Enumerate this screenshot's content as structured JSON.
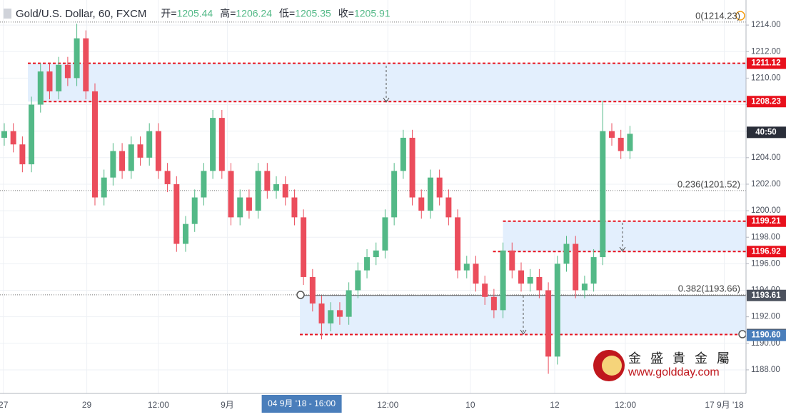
{
  "chart_data": {
    "type": "candlestick",
    "title": "Gold/U.S. Dollar, 60, FXCM",
    "ohlc_header": [
      {
        "label": "开=",
        "value": 1205.44
      },
      {
        "label": "高=",
        "value": 1206.24
      },
      {
        "label": "低=",
        "value": 1205.35
      },
      {
        "label": "收=",
        "value": 1205.91
      }
    ],
    "up_color": "#53b987",
    "down_color": "#eb4d5c",
    "open": [
      1205.5,
      1206,
      1205,
      1203.5,
      1208,
      1210.5,
      1209,
      1211,
      1210,
      1213,
      1209,
      1201,
      1202.5,
      1204.5,
      1203,
      1205,
      1204,
      1206,
      1203,
      1202,
      1197.5,
      1199,
      1201,
      1203,
      1207,
      1203,
      1199.5,
      1201,
      1200,
      1203,
      1201.5,
      1202,
      1201,
      1199.5,
      1195,
      1193,
      1191.5,
      1192.5,
      1192,
      1194,
      1195.5,
      1196.5,
      1197,
      1199.5,
      1203,
      1205.5,
      1201,
      1200,
      1202.5,
      1201,
      1199.5,
      1195.5,
      1196,
      1194.5,
      1193.5,
      1192.5,
      1197,
      1195.5,
      1194.5,
      1195,
      1194,
      1189,
      1196,
      1197.5,
      1194,
      1194.5,
      1196.5,
      1206,
      1205.5,
      1204.5
    ],
    "high": [
      1206.6,
      1206.6,
      1205.6,
      1208.6,
      1211.1,
      1211.1,
      1211.6,
      1211.6,
      1214.1,
      1213.6,
      1209.6,
      1203.1,
      1205.1,
      1205.1,
      1205.6,
      1205.6,
      1206.6,
      1206.6,
      1203.6,
      1202.6,
      1199.6,
      1201.6,
      1203.6,
      1207.6,
      1207.6,
      1203.6,
      1201.6,
      1201.6,
      1203.6,
      1203.6,
      1202.6,
      1202.6,
      1201.6,
      1200.1,
      1195.6,
      1193.6,
      1193.1,
      1193.1,
      1194.6,
      1196.1,
      1197.1,
      1197.6,
      1200.1,
      1203.6,
      1206.1,
      1206.1,
      1201.6,
      1203.1,
      1203.1,
      1201.6,
      1200.1,
      1196.6,
      1196.6,
      1195.1,
      1194.1,
      1197.6,
      1197.6,
      1196.1,
      1195.6,
      1195.6,
      1194.6,
      1196.6,
      1198.1,
      1198.1,
      1195.1,
      1197.1,
      1208.3,
      1206.6,
      1206.1,
      1206.4
    ],
    "low": [
      1204.9,
      1204.4,
      1202.9,
      1202.9,
      1207.4,
      1208.4,
      1208.4,
      1209.4,
      1209.4,
      1208.4,
      1200.4,
      1200.4,
      1201.9,
      1202.4,
      1202.4,
      1203.4,
      1203.4,
      1202.4,
      1201.4,
      1196.9,
      1196.9,
      1198.4,
      1200.4,
      1202.4,
      1202.4,
      1198.9,
      1198.9,
      1199.4,
      1199.4,
      1200.9,
      1200.9,
      1200.4,
      1198.9,
      1194.4,
      1192.4,
      1190.3,
      1190.9,
      1191.4,
      1191.4,
      1193.4,
      1194.9,
      1195.9,
      1196.4,
      1198.9,
      1202.4,
      1200.4,
      1199.4,
      1199.4,
      1200.4,
      1198.9,
      1194.9,
      1194.9,
      1193.9,
      1192.9,
      1191.9,
      1191.9,
      1194.9,
      1193.9,
      1193.9,
      1193.4,
      1187.7,
      1188.4,
      1195.4,
      1193.4,
      1193.4,
      1193.9,
      1195.9,
      1204.9,
      1203.9,
      1203.9
    ],
    "close": [
      1206,
      1205,
      1203.5,
      1208,
      1210.5,
      1209,
      1211,
      1210,
      1213,
      1209,
      1201,
      1202.5,
      1204.5,
      1203,
      1205,
      1204,
      1206,
      1203,
      1202,
      1197.5,
      1199,
      1201,
      1203,
      1207,
      1203,
      1199.5,
      1201,
      1200,
      1203,
      1201.5,
      1202,
      1201,
      1199.5,
      1195,
      1193,
      1191.5,
      1192.5,
      1192,
      1194,
      1195.5,
      1196.5,
      1197,
      1199.5,
      1203,
      1205.5,
      1201,
      1200,
      1202.5,
      1201,
      1199.5,
      1195.5,
      1196,
      1194.5,
      1193.5,
      1192.5,
      1197,
      1195.5,
      1194.5,
      1195,
      1194,
      1189,
      1196,
      1197.5,
      1194,
      1194.5,
      1196.5,
      1206,
      1205.5,
      1204.5,
      1205.8
    ],
    "xlim": [
      -0.47,
      81.8
    ],
    "xticks": [
      {
        "value": -0.1,
        "label": "27"
      },
      {
        "value": 9.1,
        "label": "29"
      },
      {
        "value": 17,
        "label": "12:00"
      },
      {
        "value": 24.6,
        "label": "9月"
      },
      {
        "value": 42.3,
        "label": "12:00"
      },
      {
        "value": 51.4,
        "label": "10"
      },
      {
        "value": 60.7,
        "label": "12"
      },
      {
        "value": 68.5,
        "label": "12:00"
      },
      {
        "value": 79.4,
        "label": "17 9月 '18"
      }
    ],
    "crosshair_x": {
      "value": 32.8,
      "label": "04 9月 '18 - 16:00"
    },
    "ylim": [
      1186.22,
      1215.89
    ],
    "yticks": [
      {
        "value": 1188,
        "label": "1188.00"
      },
      {
        "value": 1190,
        "label": "1190.00"
      },
      {
        "value": 1192,
        "label": "1192.00"
      },
      {
        "value": 1194,
        "label": "1194.00"
      },
      {
        "value": 1196,
        "label": "1196.00"
      },
      {
        "value": 1198,
        "label": "1198.00"
      },
      {
        "value": 1200,
        "label": "1200.00"
      },
      {
        "value": 1202,
        "label": "1202.00"
      },
      {
        "value": 1204,
        "label": "1204.00"
      },
      {
        "value": 1206,
        "label": "1206.00"
      },
      {
        "value": 1208,
        "label": "1208.00"
      },
      {
        "value": 1210,
        "label": "1210.00"
      },
      {
        "value": 1212,
        "label": "1212.00"
      },
      {
        "value": 1214,
        "label": "1214.00"
      }
    ],
    "grid": true,
    "fib_levels": [
      {
        "value": 1214.23,
        "label": "0(1214.23)"
      },
      {
        "value": 1201.52,
        "label": "0.236(1201.52)"
      },
      {
        "value": 1193.66,
        "label": "0.382(1193.66)"
      }
    ],
    "zones": [
      {
        "top": 1211.12,
        "bottom": 1208.23,
        "start": 2.6,
        "top_start": 2.6,
        "bottom_start": 3.8
      },
      {
        "top": 1199.21,
        "bottom": 1196.92,
        "start": 55,
        "top_start": 55,
        "bottom_start": 53.9
      },
      {
        "top": 1193.61,
        "bottom": 1190.66,
        "start": 32.6,
        "top_start": 32.6,
        "bottom_start": 32.6
      }
    ],
    "price_labels": [
      {
        "value": 1211.12,
        "label": "1211.12",
        "color": "#e8101c"
      },
      {
        "value": 1208.23,
        "label": "1208.23",
        "color": "#e8101c"
      },
      {
        "value": 1205.91,
        "label": "40:50",
        "color": "#2a2e39"
      },
      {
        "value": 1199.21,
        "label": "1199.21",
        "color": "#e8101c"
      },
      {
        "value": 1196.92,
        "label": "1196.92",
        "color": "#e8101c"
      },
      {
        "value": 1193.61,
        "label": "1193.61",
        "color": "#4c525e"
      },
      {
        "value": 1190.66,
        "label": "1190.66",
        "color": "#4c525e"
      },
      {
        "value": 1190.6,
        "label": "1190.60",
        "color": "#4a7ebb"
      }
    ],
    "logo": {
      "name": "金 盛 貴 金 屬",
      "url": "www.goldday.com"
    }
  }
}
